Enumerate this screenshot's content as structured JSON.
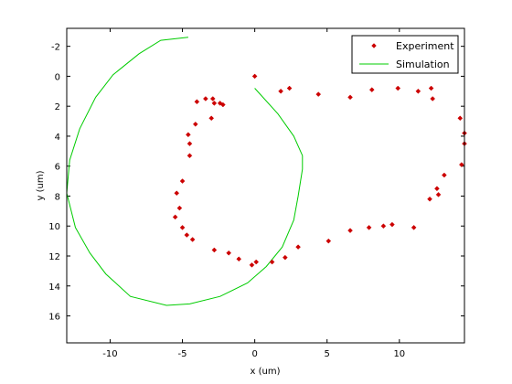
{
  "chart_data": {
    "type": "scatter",
    "xlabel": "x (um)",
    "ylabel": "y (um)",
    "xlim": [
      -13,
      14.5
    ],
    "ylim": [
      -3.2,
      17.8
    ],
    "y_reversed": true,
    "grid": false,
    "legend_position": "top-right",
    "x_ticks": [
      -10,
      -5,
      0,
      5,
      10
    ],
    "y_ticks": [
      -2,
      0,
      2,
      4,
      6,
      8,
      10,
      12,
      14,
      16
    ],
    "x_tick_labels": [
      "-10",
      "-5",
      "0",
      "5",
      "10"
    ],
    "y_tick_labels": [
      "-2",
      "0",
      "2",
      "4",
      "6",
      "8",
      "10",
      "12",
      "14",
      "16"
    ],
    "series": [
      {
        "name": "Experiment",
        "style": "markers",
        "color": "#cc0000",
        "points": [
          [
            0.0,
            0.0
          ],
          [
            1.8,
            1.0
          ],
          [
            2.4,
            0.8
          ],
          [
            4.4,
            1.2
          ],
          [
            6.6,
            1.4
          ],
          [
            8.1,
            0.9
          ],
          [
            9.9,
            0.8
          ],
          [
            11.3,
            1.0
          ],
          [
            12.2,
            0.8
          ],
          [
            12.3,
            1.5
          ],
          [
            14.2,
            2.8
          ],
          [
            14.5,
            3.8
          ],
          [
            14.5,
            4.5
          ],
          [
            14.3,
            5.9
          ],
          [
            13.1,
            6.6
          ],
          [
            12.6,
            7.5
          ],
          [
            12.7,
            7.9
          ],
          [
            12.1,
            8.2
          ],
          [
            11.0,
            10.1
          ],
          [
            9.5,
            9.9
          ],
          [
            8.9,
            10.0
          ],
          [
            7.9,
            10.1
          ],
          [
            6.6,
            10.3
          ],
          [
            5.1,
            11.0
          ],
          [
            3.0,
            11.4
          ],
          [
            2.1,
            12.1
          ],
          [
            1.2,
            12.4
          ],
          [
            0.1,
            12.4
          ],
          [
            -0.2,
            12.6
          ],
          [
            -1.1,
            12.2
          ],
          [
            -1.8,
            11.8
          ],
          [
            -2.8,
            11.6
          ],
          [
            -4.3,
            10.9
          ],
          [
            -4.7,
            10.6
          ],
          [
            -5.0,
            10.1
          ],
          [
            -5.5,
            9.4
          ],
          [
            -5.2,
            8.8
          ],
          [
            -5.4,
            7.8
          ],
          [
            -5.0,
            7.0
          ],
          [
            -4.5,
            5.3
          ],
          [
            -4.5,
            4.5
          ],
          [
            -4.6,
            3.9
          ],
          [
            -4.1,
            3.2
          ],
          [
            -3.0,
            2.8
          ],
          [
            -4.0,
            1.7
          ],
          [
            -3.4,
            1.5
          ],
          [
            -2.9,
            1.5
          ],
          [
            -2.8,
            1.8
          ],
          [
            -2.4,
            1.8
          ],
          [
            -2.2,
            1.9
          ]
        ]
      },
      {
        "name": "Simulation",
        "style": "line",
        "color": "#00cc00",
        "points": [
          [
            -4.6,
            -2.6
          ],
          [
            -6.5,
            -2.4
          ],
          [
            -8.0,
            -1.5
          ],
          [
            -9.8,
            -0.1
          ],
          [
            -11.0,
            1.4
          ],
          [
            -12.1,
            3.5
          ],
          [
            -12.8,
            5.6
          ],
          [
            -13.0,
            7.8
          ],
          [
            -12.4,
            10.1
          ],
          [
            -11.4,
            11.8
          ],
          [
            -10.3,
            13.2
          ],
          [
            -8.6,
            14.7
          ],
          [
            -6.1,
            15.3
          ],
          [
            -4.5,
            15.2
          ],
          [
            -2.4,
            14.7
          ],
          [
            -0.5,
            13.8
          ],
          [
            0.8,
            12.7
          ],
          [
            1.9,
            11.4
          ],
          [
            2.7,
            9.6
          ],
          [
            3.0,
            8.0
          ],
          [
            3.3,
            6.2
          ],
          [
            3.3,
            5.3
          ],
          [
            2.7,
            4.0
          ],
          [
            1.6,
            2.5
          ],
          [
            0.0,
            0.8
          ]
        ]
      }
    ]
  }
}
